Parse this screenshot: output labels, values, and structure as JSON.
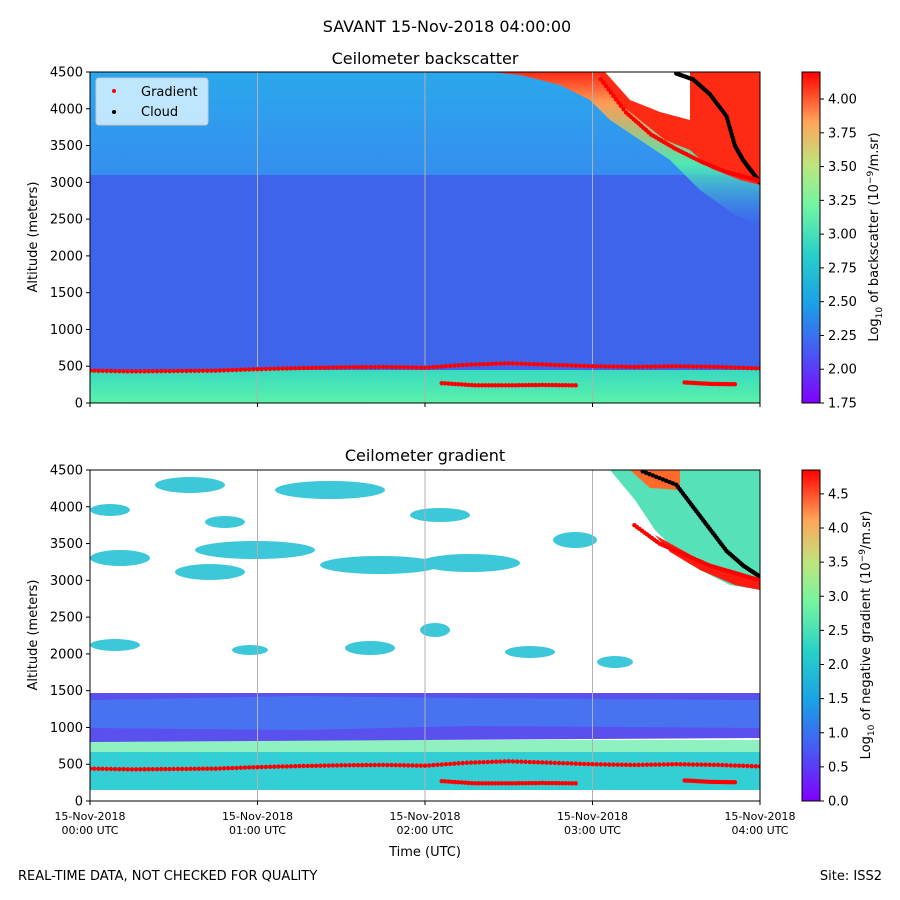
{
  "figure": {
    "suptitle": "SAVANT 15-Nov-2018 04:00:00",
    "footer_left": "REAL-TIME DATA, NOT CHECKED FOR QUALITY",
    "footer_right": "Site: ISS2"
  },
  "chart_data": [
    {
      "type": "heatmap",
      "title": "Ceilometer backscatter",
      "ylabel": "Altitude (meters)",
      "xlabel": "",
      "x_tick_labels": [],
      "y_ticks": [
        0,
        500,
        1000,
        1500,
        2000,
        2500,
        3000,
        3500,
        4000,
        4500
      ],
      "x_range_hours": [
        0,
        4
      ],
      "ylim": [
        0,
        4500
      ],
      "grid": "vertical-lines-at-x-ticks",
      "colormap": "rainbow",
      "colorbar": {
        "label": "Log10 of backscatter (10^-9/m.sr)",
        "label_parts": [
          "Log",
          "10",
          " of backscatter (10",
          "−9",
          "/m.sr)"
        ],
        "range": [
          1.75,
          4.2
        ],
        "ticks": [
          "1.75",
          "2.00",
          "2.25",
          "2.50",
          "2.75",
          "3.00",
          "3.25",
          "3.50",
          "3.75",
          "4.00"
        ]
      },
      "legend": {
        "placement": "top-left",
        "entries": [
          {
            "name": "Gradient",
            "color": "#ff0000"
          },
          {
            "name": "Cloud",
            "color": "#000000"
          }
        ]
      },
      "series": [
        {
          "name": "Gradient",
          "color": "#ff0000",
          "points": [
            [
              0.0,
              440
            ],
            [
              0.25,
              430
            ],
            [
              0.5,
              435
            ],
            [
              0.75,
              440
            ],
            [
              1.0,
              460
            ],
            [
              1.25,
              475
            ],
            [
              1.5,
              485
            ],
            [
              1.75,
              490
            ],
            [
              2.0,
              480
            ],
            [
              2.25,
              520
            ],
            [
              2.5,
              540
            ],
            [
              2.75,
              520
            ],
            [
              3.0,
              500
            ],
            [
              3.25,
              490
            ],
            [
              3.5,
              500
            ],
            [
              3.75,
              490
            ],
            [
              4.0,
              470
            ]
          ]
        },
        {
          "name": "Gradient (lower layer)",
          "color": "#ff0000",
          "points": [
            [
              2.1,
              270
            ],
            [
              2.3,
              240
            ],
            [
              2.5,
              240
            ],
            [
              2.7,
              245
            ],
            [
              2.9,
              240
            ],
            [
              3.55,
              280
            ],
            [
              3.7,
              260
            ],
            [
              3.85,
              255
            ]
          ]
        },
        {
          "name": "Cloud top-right",
          "color": "#000000",
          "points": [
            [
              3.5,
              4480
            ],
            [
              3.6,
              4400
            ],
            [
              3.7,
              4200
            ],
            [
              3.8,
              3900
            ],
            [
              3.85,
              3500
            ],
            [
              3.9,
              3300
            ],
            [
              3.95,
              3150
            ],
            [
              4.0,
              3000
            ]
          ]
        },
        {
          "name": "Gradient top-right",
          "color": "#ff0000",
          "points": [
            [
              3.05,
              4400
            ],
            [
              3.2,
              3950
            ],
            [
              3.35,
              3650
            ],
            [
              3.5,
              3450
            ],
            [
              3.65,
              3280
            ],
            [
              3.8,
              3140
            ],
            [
              3.95,
              3050
            ],
            [
              4.0,
              3020
            ]
          ]
        }
      ]
    },
    {
      "type": "heatmap",
      "title": "Ceilometer gradient",
      "ylabel": "Altitude (meters)",
      "xlabel": "Time (UTC)",
      "x_tick_labels": [
        [
          "15-Nov-2018",
          "00:00 UTC"
        ],
        [
          "15-Nov-2018",
          "01:00 UTC"
        ],
        [
          "15-Nov-2018",
          "02:00 UTC"
        ],
        [
          "15-Nov-2018",
          "03:00 UTC"
        ],
        [
          "15-Nov-2018",
          "04:00 UTC"
        ]
      ],
      "y_ticks": [
        0,
        500,
        1000,
        1500,
        2000,
        2500,
        3000,
        3500,
        4000,
        4500
      ],
      "x_range_hours": [
        0,
        4
      ],
      "ylim": [
        0,
        4500
      ],
      "grid": "vertical-lines-at-x-ticks",
      "colormap": "rainbow",
      "colorbar": {
        "label": "Log10 of negative gradient (10^-9/m.sr)",
        "label_parts": [
          "Log",
          "10",
          " of negative gradient (10",
          "−9",
          "/m.sr)"
        ],
        "range": [
          0.0,
          4.85
        ],
        "ticks": [
          "0.0",
          "0.5",
          "1.0",
          "1.5",
          "2.0",
          "2.5",
          "3.0",
          "3.5",
          "4.0",
          "4.5"
        ]
      },
      "series": [
        {
          "name": "Gradient",
          "color": "#ff0000",
          "points": [
            [
              0.0,
              440
            ],
            [
              0.25,
              430
            ],
            [
              0.5,
              435
            ],
            [
              0.75,
              440
            ],
            [
              1.0,
              460
            ],
            [
              1.25,
              475
            ],
            [
              1.5,
              485
            ],
            [
              1.75,
              490
            ],
            [
              2.0,
              480
            ],
            [
              2.25,
              520
            ],
            [
              2.5,
              540
            ],
            [
              2.75,
              520
            ],
            [
              3.0,
              500
            ],
            [
              3.25,
              490
            ],
            [
              3.5,
              500
            ],
            [
              3.75,
              490
            ],
            [
              4.0,
              470
            ]
          ]
        },
        {
          "name": "Gradient (lower layer)",
          "color": "#ff0000",
          "points": [
            [
              2.1,
              270
            ],
            [
              2.3,
              240
            ],
            [
              2.5,
              240
            ],
            [
              2.7,
              245
            ],
            [
              2.9,
              240
            ],
            [
              3.55,
              280
            ],
            [
              3.7,
              260
            ],
            [
              3.85,
              255
            ]
          ]
        },
        {
          "name": "Cloud top-right",
          "color": "#000000",
          "points": [
            [
              3.3,
              4480
            ],
            [
              3.5,
              4300
            ],
            [
              3.6,
              4000
            ],
            [
              3.7,
              3700
            ],
            [
              3.8,
              3400
            ],
            [
              3.9,
              3200
            ],
            [
              4.0,
              3050
            ]
          ]
        },
        {
          "name": "Gradient top-right",
          "color": "#ff0000",
          "points": [
            [
              3.25,
              3750
            ],
            [
              3.4,
              3500
            ],
            [
              3.55,
              3350
            ],
            [
              3.7,
              3200
            ],
            [
              3.85,
              3100
            ],
            [
              4.0,
              3000
            ]
          ]
        }
      ]
    }
  ]
}
